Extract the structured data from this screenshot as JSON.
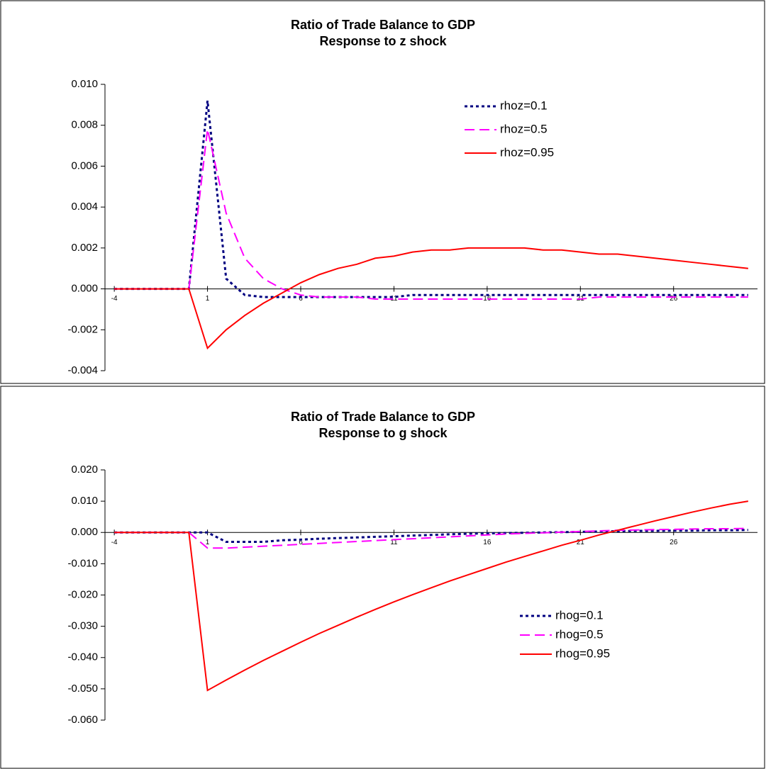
{
  "chart_data": [
    {
      "type": "line",
      "title": "Ratio of Trade Balance to GDP",
      "subtitle": "Response to z shock",
      "x": [
        -4,
        -3,
        -2,
        -1,
        0,
        1,
        2,
        3,
        4,
        5,
        6,
        7,
        8,
        9,
        10,
        11,
        12,
        13,
        14,
        15,
        16,
        17,
        18,
        19,
        20,
        21,
        22,
        23,
        24,
        25,
        26,
        27,
        28,
        29,
        30
      ],
      "xlim": [
        -4.5,
        30.5
      ],
      "xticks": [
        -4,
        1,
        6,
        11,
        16,
        21,
        26
      ],
      "ylim": [
        -0.004,
        0.01
      ],
      "yticks": [
        {
          "value": -0.004,
          "label": "-0.004"
        },
        {
          "value": -0.002,
          "label": "-0.002"
        },
        {
          "value": 0,
          "label": "0.000"
        },
        {
          "value": 0.002,
          "label": "0.002"
        },
        {
          "value": 0.004,
          "label": "0.004"
        },
        {
          "value": 0.006,
          "label": "0.006"
        },
        {
          "value": 0.008,
          "label": "0.008"
        },
        {
          "value": 0.01,
          "label": "0.010"
        }
      ],
      "legend": "upper right",
      "series": [
        {
          "name": "rhoz=0.1",
          "color": "#000080",
          "style": "dotted",
          "values": [
            0,
            0,
            0,
            0,
            0,
            0.0092,
            0.0005,
            -0.0003,
            -0.0004,
            -0.0004,
            -0.0004,
            -0.0004,
            -0.0004,
            -0.0004,
            -0.0004,
            -0.0004,
            -0.0003,
            -0.0003,
            -0.0003,
            -0.0003,
            -0.0003,
            -0.0003,
            -0.0003,
            -0.0003,
            -0.0003,
            -0.0003,
            -0.0003,
            -0.0003,
            -0.0003,
            -0.0003,
            -0.0003,
            -0.0003,
            -0.0003,
            -0.0003,
            -0.0003
          ]
        },
        {
          "name": "rhoz=0.5",
          "color": "#ff00ff",
          "style": "dashed",
          "values": [
            0,
            0,
            0,
            0,
            0,
            0.0078,
            0.0037,
            0.0015,
            0.0005,
            0,
            -0.0003,
            -0.0004,
            -0.0004,
            -0.0004,
            -0.0005,
            -0.0005,
            -0.0005,
            -0.0005,
            -0.0005,
            -0.0005,
            -0.0005,
            -0.0005,
            -0.0005,
            -0.0005,
            -0.0005,
            -0.0005,
            -0.0004,
            -0.0004,
            -0.0004,
            -0.0004,
            -0.0004,
            -0.0004,
            -0.0004,
            -0.0004,
            -0.0004
          ]
        },
        {
          "name": "rhoz=0.95",
          "color": "#ff0000",
          "style": "solid",
          "values": [
            0,
            0,
            0,
            0,
            0,
            -0.0029,
            -0.002,
            -0.0013,
            -0.0007,
            -0.0002,
            0.0003,
            0.0007,
            0.001,
            0.0012,
            0.0015,
            0.0016,
            0.0018,
            0.0019,
            0.0019,
            0.002,
            0.002,
            0.002,
            0.002,
            0.0019,
            0.0019,
            0.0018,
            0.0017,
            0.0017,
            0.0016,
            0.0015,
            0.0014,
            0.0013,
            0.0012,
            0.0011,
            0.001
          ]
        }
      ]
    },
    {
      "type": "line",
      "title": "Ratio of Trade Balance to GDP",
      "subtitle": "Response to g shock",
      "x": [
        -4,
        -3,
        -2,
        -1,
        0,
        1,
        2,
        3,
        4,
        5,
        6,
        7,
        8,
        9,
        10,
        11,
        12,
        13,
        14,
        15,
        16,
        17,
        18,
        19,
        20,
        21,
        22,
        23,
        24,
        25,
        26,
        27,
        28,
        29,
        30
      ],
      "xlim": [
        -4.5,
        30.5
      ],
      "xticks": [
        -4,
        1,
        6,
        11,
        16,
        21,
        26
      ],
      "ylim": [
        -0.06,
        0.02
      ],
      "yticks": [
        {
          "value": -0.06,
          "label": "-0.060"
        },
        {
          "value": -0.05,
          "label": "-0.050"
        },
        {
          "value": -0.04,
          "label": "-0.040"
        },
        {
          "value": -0.03,
          "label": "-0.030"
        },
        {
          "value": -0.02,
          "label": "-0.020"
        },
        {
          "value": -0.01,
          "label": "-0.010"
        },
        {
          "value": 0,
          "label": "0.000"
        },
        {
          "value": 0.01,
          "label": "0.010"
        },
        {
          "value": 0.02,
          "label": "0.020"
        }
      ],
      "legend": "lower right",
      "series": [
        {
          "name": "rhog=0.1",
          "color": "#000080",
          "style": "dotted",
          "values": [
            0,
            0,
            0,
            0,
            0,
            0,
            -0.003,
            -0.003,
            -0.003,
            -0.0025,
            -0.0023,
            -0.002,
            -0.0018,
            -0.0016,
            -0.0014,
            -0.0012,
            -0.001,
            -0.0008,
            -0.0006,
            -0.0004,
            -0.0003,
            -0.0002,
            -0.0001,
            0,
            0.0001,
            0.0002,
            0.0003,
            0.0004,
            0.0005,
            0.0005,
            0.0006,
            0.0006,
            0.0007,
            0.0007,
            0.0008
          ]
        },
        {
          "name": "rhog=0.5",
          "color": "#ff00ff",
          "style": "dashed",
          "values": [
            0,
            0,
            0,
            0,
            0,
            -0.005,
            -0.005,
            -0.0047,
            -0.0044,
            -0.0041,
            -0.0038,
            -0.0035,
            -0.0032,
            -0.0029,
            -0.0026,
            -0.0023,
            -0.002,
            -0.0017,
            -0.0014,
            -0.0011,
            -0.0008,
            -0.0005,
            -0.0003,
            -0.0001,
            0.0001,
            0.0003,
            0.0005,
            0.0007,
            0.0008,
            0.0009,
            0.001,
            0.0011,
            0.0012,
            0.0012,
            0.0013
          ]
        },
        {
          "name": "rhog=0.95",
          "color": "#ff0000",
          "style": "solid",
          "values": [
            0,
            0,
            0,
            0,
            0,
            -0.0505,
            -0.0472,
            -0.044,
            -0.0409,
            -0.038,
            -0.0351,
            -0.0323,
            -0.0297,
            -0.0271,
            -0.0246,
            -0.0222,
            -0.0199,
            -0.0177,
            -0.0155,
            -0.0135,
            -0.0115,
            -0.0095,
            -0.0077,
            -0.0059,
            -0.0041,
            -0.0025,
            -0.0008,
            0.0007,
            0.0022,
            0.0037,
            0.0051,
            0.0065,
            0.0078,
            0.009,
            0.01
          ]
        }
      ]
    }
  ]
}
